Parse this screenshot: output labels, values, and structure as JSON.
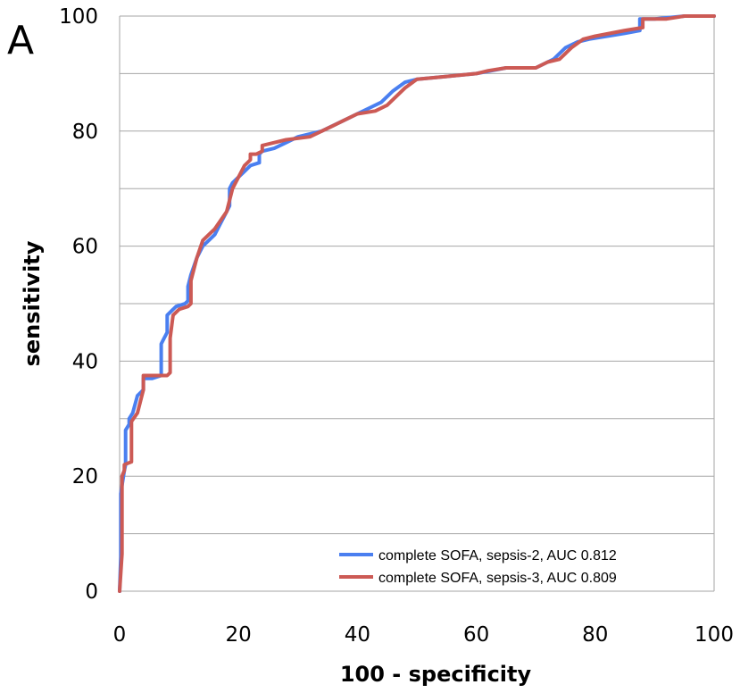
{
  "panel_label": "A",
  "colors": {
    "series_blue": "#4a7ff0",
    "series_red": "#cc5a55",
    "grid": "#a6a6a6"
  },
  "chart_data": {
    "type": "line",
    "title": "",
    "xlabel": "100 - specificity",
    "ylabel": "sensitivity",
    "xlim": [
      0,
      100
    ],
    "ylim": [
      0,
      100
    ],
    "x_ticks": [
      0,
      20,
      40,
      60,
      80,
      100
    ],
    "y_ticks": [
      0,
      20,
      40,
      60,
      80,
      100
    ],
    "y_gridlines": [
      10,
      20,
      30,
      40,
      50,
      60,
      70,
      80,
      90,
      100
    ],
    "grid": true,
    "legend_position": "bottom-right",
    "series": [
      {
        "name": "complete SOFA, sepsis-2, AUC 0.812",
        "color": "#4a7ff0",
        "x": [
          0,
          0.2,
          0.2,
          0.8,
          1,
          1,
          1.6,
          1.6,
          2.2,
          3,
          4,
          4,
          5.5,
          7,
          7,
          7.5,
          8,
          8,
          8.5,
          9,
          9.5,
          11,
          11.5,
          11.5,
          12,
          13,
          14,
          15,
          16,
          17,
          18,
          18.5,
          18.5,
          19,
          20,
          21,
          22,
          22,
          23.5,
          23.5,
          24,
          26,
          28,
          30,
          34,
          38,
          42,
          44,
          46,
          48,
          50,
          55,
          60,
          65,
          70,
          72,
          73,
          75,
          77,
          79,
          85,
          87.5,
          87.5,
          90,
          95,
          100
        ],
        "y": [
          0,
          6,
          17,
          21,
          22,
          28,
          29,
          30,
          31,
          34,
          35,
          37,
          37,
          37.5,
          43,
          44,
          45,
          48,
          48.5,
          49,
          49.5,
          50,
          50.5,
          53,
          55,
          58,
          60,
          61,
          62,
          64,
          66,
          67,
          70,
          71,
          72,
          73,
          74,
          74,
          74.5,
          76,
          76.5,
          77,
          78,
          79,
          80,
          82,
          84,
          85,
          87,
          88.5,
          89,
          89.5,
          90,
          91,
          91,
          92,
          92.5,
          94.5,
          95.5,
          96,
          97,
          97.5,
          99.5,
          99.5,
          100,
          100
        ]
      },
      {
        "name": "complete SOFA, sepsis-3, AUC 0.809",
        "color": "#cc5a55",
        "x": [
          0,
          0.4,
          0.4,
          0.8,
          0.8,
          2,
          2,
          3,
          4,
          4,
          6,
          8,
          8.5,
          8.5,
          9,
          10,
          11.5,
          12,
          12,
          13,
          14,
          16,
          18,
          19,
          20,
          21,
          22,
          22,
          23,
          24,
          24,
          26,
          28,
          32,
          36,
          40,
          43,
          45,
          48,
          50,
          55,
          60,
          62,
          65,
          70,
          72,
          74,
          76,
          78,
          80,
          85,
          88,
          88,
          92,
          95,
          100
        ],
        "y": [
          0,
          6.5,
          20,
          21,
          22,
          22.5,
          29.5,
          31,
          35,
          37.5,
          37.5,
          37.5,
          38,
          44,
          48,
          49,
          49.5,
          50,
          54,
          58,
          61,
          63,
          66,
          70,
          72,
          74,
          75,
          76,
          76,
          76.5,
          77.5,
          78,
          78.5,
          79,
          81,
          83,
          83.5,
          84.5,
          87.5,
          89,
          89.5,
          90,
          90.5,
          91,
          91,
          92,
          92.5,
          94.5,
          96,
          96.5,
          97.5,
          98,
          99.5,
          99.5,
          100,
          100
        ]
      }
    ]
  }
}
